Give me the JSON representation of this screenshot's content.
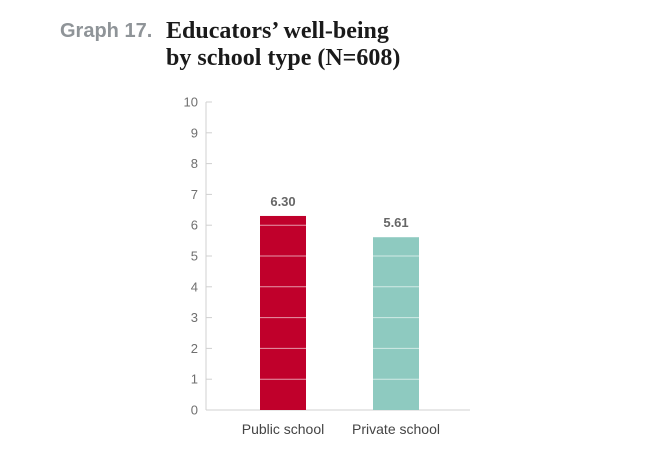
{
  "header": {
    "graph_number": "Graph 17.",
    "title_line1": "Educators’ well-being",
    "title_line2": "by school type (N=608)"
  },
  "chart_data": {
    "type": "bar",
    "title": "Educators’ well-being by school type (N=608)",
    "categories": [
      "Public school",
      "Private school"
    ],
    "values": [
      6.3,
      5.61
    ],
    "value_labels": [
      "6.30",
      "5.61"
    ],
    "colors": [
      "#c0002b",
      "#8ecac0"
    ],
    "xlabel": "",
    "ylabel": "",
    "ylim": [
      0,
      10
    ],
    "yticks": [
      0,
      1,
      2,
      3,
      4,
      5,
      6,
      7,
      8,
      9,
      10
    ],
    "grid": false
  }
}
